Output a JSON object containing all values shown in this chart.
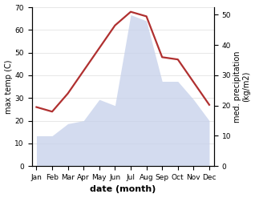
{
  "months": [
    "Jan",
    "Feb",
    "Mar",
    "Apr",
    "May",
    "Jun",
    "Jul",
    "Aug",
    "Sep",
    "Oct",
    "Nov",
    "Dec"
  ],
  "max_temp": [
    26,
    24,
    32,
    42,
    52,
    62,
    68,
    66,
    48,
    47,
    37,
    27
  ],
  "precipitation": [
    10,
    10,
    14,
    15,
    22,
    20,
    50,
    48,
    28,
    28,
    22,
    15
  ],
  "temp_ylim": [
    0,
    70
  ],
  "precip_ylim": [
    0,
    52.5
  ],
  "temp_color": "#b03030",
  "precip_fill_color": "#c5d0ea",
  "precip_fill_alpha": 0.75,
  "xlabel": "date (month)",
  "ylabel_left": "max temp (C)",
  "ylabel_right": "med. precipitation\n(kg/m2)",
  "background_color": "#ffffff",
  "label_fontsize": 7,
  "tick_fontsize": 6.5,
  "xlabel_fontsize": 8,
  "linewidth": 1.6
}
